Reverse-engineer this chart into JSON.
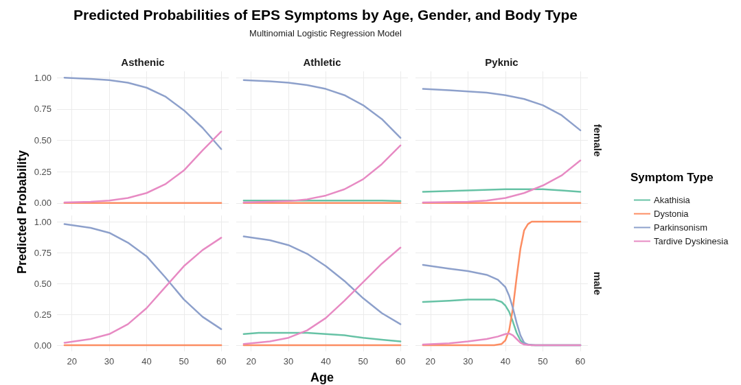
{
  "chart_data": [
    {
      "type": "line",
      "ylabel": "Predicted Probability",
      "annotations": [
        "Asthenic"
      ],
      "tick_labels": "y",
      "grid": true,
      "xlim": [
        16,
        62
      ],
      "xticks": [
        20,
        30,
        40,
        50,
        60
      ],
      "ylim": [
        -0.05,
        1.05
      ],
      "yticks": [
        {
          "value": 0,
          "label": "0.00"
        },
        {
          "value": 0.25,
          "label": "0.25"
        },
        {
          "value": 0.5,
          "label": "0.50"
        },
        {
          "value": 0.75,
          "label": "0.75"
        },
        {
          "value": 1,
          "label": "1.00"
        }
      ],
      "series": [
        {
          "color": "#fc8d62",
          "x": [
            18,
            60
          ],
          "values": [
            0,
            0
          ]
        },
        {
          "color": "#8da0cb",
          "x": [
            18,
            25,
            30,
            35,
            40,
            45,
            50,
            55,
            60
          ],
          "values": [
            1.0,
            0.99,
            0.98,
            0.96,
            0.92,
            0.85,
            0.74,
            0.6,
            0.43
          ]
        },
        {
          "color": "#e78ac3",
          "x": [
            18,
            25,
            30,
            35,
            40,
            45,
            50,
            55,
            60
          ],
          "values": [
            0.005,
            0.01,
            0.02,
            0.04,
            0.08,
            0.15,
            0.26,
            0.42,
            0.57
          ]
        }
      ]
    },
    {
      "type": "line",
      "title": "Predicted Probabilities of EPS Symptoms by Age, Gender, and Body Type",
      "subtitle": "Multinomial Logistic Regression Model",
      "annotations": [
        "Athletic"
      ],
      "tick_labels": false,
      "grid": true,
      "xlim": [
        16,
        62
      ],
      "xticks": [
        20,
        30,
        40,
        50,
        60
      ],
      "ylim": [
        -0.05,
        1.05
      ],
      "yticks": [
        0,
        0.25,
        0.5,
        0.75,
        1
      ],
      "series": [
        {
          "color": "#66c2a5",
          "x": [
            18,
            30,
            40,
            50,
            55,
            60
          ],
          "values": [
            0.02,
            0.02,
            0.02,
            0.02,
            0.02,
            0.015
          ]
        },
        {
          "color": "#fc8d62",
          "x": [
            18,
            60
          ],
          "values": [
            0,
            0
          ]
        },
        {
          "color": "#8da0cb",
          "x": [
            18,
            25,
            30,
            35,
            40,
            45,
            50,
            55,
            60
          ],
          "values": [
            0.98,
            0.97,
            0.96,
            0.94,
            0.91,
            0.86,
            0.78,
            0.67,
            0.52
          ]
        },
        {
          "color": "#e78ac3",
          "x": [
            18,
            30,
            35,
            40,
            45,
            50,
            55,
            60
          ],
          "values": [
            0.005,
            0.015,
            0.03,
            0.06,
            0.11,
            0.19,
            0.31,
            0.46
          ]
        }
      ]
    },
    {
      "type": "line",
      "annotations": [
        "Pyknic",
        "female"
      ],
      "tick_labels": false,
      "grid": true,
      "xlim": [
        16,
        62
      ],
      "xticks": [
        20,
        30,
        40,
        50,
        60
      ],
      "ylim": [
        -0.05,
        1.05
      ],
      "yticks": [
        0,
        0.25,
        0.5,
        0.75,
        1
      ],
      "series": [
        {
          "color": "#66c2a5",
          "x": [
            18,
            30,
            40,
            50,
            55,
            60
          ],
          "values": [
            0.09,
            0.1,
            0.11,
            0.11,
            0.1,
            0.09
          ]
        },
        {
          "color": "#fc8d62",
          "x": [
            18,
            60
          ],
          "values": [
            0,
            0
          ]
        },
        {
          "color": "#8da0cb",
          "x": [
            18,
            25,
            30,
            35,
            40,
            45,
            50,
            55,
            60
          ],
          "values": [
            0.91,
            0.9,
            0.89,
            0.88,
            0.86,
            0.83,
            0.78,
            0.7,
            0.58
          ]
        },
        {
          "color": "#e78ac3",
          "x": [
            18,
            30,
            35,
            40,
            45,
            50,
            55,
            60
          ],
          "values": [
            0.005,
            0.01,
            0.02,
            0.04,
            0.08,
            0.14,
            0.22,
            0.34
          ]
        }
      ]
    },
    {
      "type": "line",
      "grid": true,
      "xlim": [
        16,
        62
      ],
      "xticks": [
        20,
        30,
        40,
        50,
        60
      ],
      "ylim": [
        -0.05,
        1.05
      ],
      "yticks": [
        {
          "value": 0,
          "label": "0.00"
        },
        {
          "value": 0.25,
          "label": "0.25"
        },
        {
          "value": 0.5,
          "label": "0.50"
        },
        {
          "value": 0.75,
          "label": "0.75"
        },
        {
          "value": 1,
          "label": "1.00"
        }
      ],
      "series": [
        {
          "color": "#fc8d62",
          "x": [
            18,
            60
          ],
          "values": [
            0,
            0
          ]
        },
        {
          "color": "#8da0cb",
          "x": [
            18,
            25,
            30,
            35,
            40,
            45,
            50,
            55,
            60
          ],
          "values": [
            0.98,
            0.95,
            0.91,
            0.83,
            0.72,
            0.55,
            0.37,
            0.23,
            0.13
          ]
        },
        {
          "color": "#e78ac3",
          "x": [
            18,
            25,
            30,
            35,
            40,
            45,
            50,
            55,
            60
          ],
          "values": [
            0.02,
            0.05,
            0.09,
            0.17,
            0.3,
            0.47,
            0.64,
            0.77,
            0.87
          ]
        }
      ]
    },
    {
      "type": "line",
      "xlabel": "Age",
      "tick_labels": "x",
      "grid": true,
      "xlim": [
        16,
        62
      ],
      "xticks": [
        20,
        30,
        40,
        50,
        60
      ],
      "ylim": [
        -0.05,
        1.05
      ],
      "yticks": [
        0,
        0.25,
        0.5,
        0.75,
        1
      ],
      "series": [
        {
          "color": "#66c2a5",
          "x": [
            18,
            22,
            35,
            40,
            45,
            50,
            55,
            60
          ],
          "values": [
            0.09,
            0.1,
            0.1,
            0.09,
            0.08,
            0.06,
            0.045,
            0.03
          ]
        },
        {
          "color": "#fc8d62",
          "x": [
            18,
            60
          ],
          "values": [
            0,
            0
          ]
        },
        {
          "color": "#8da0cb",
          "x": [
            18,
            25,
            30,
            35,
            40,
            45,
            50,
            55,
            60
          ],
          "values": [
            0.88,
            0.85,
            0.81,
            0.74,
            0.64,
            0.52,
            0.38,
            0.26,
            0.17
          ]
        },
        {
          "color": "#e78ac3",
          "x": [
            18,
            25,
            30,
            35,
            40,
            45,
            50,
            55,
            60
          ],
          "values": [
            0.01,
            0.03,
            0.06,
            0.12,
            0.22,
            0.36,
            0.51,
            0.66,
            0.79
          ]
        }
      ]
    },
    {
      "type": "line",
      "annotations": [
        "male"
      ],
      "legend": "right",
      "legend_title": "Symptom Type",
      "tick_labels": "x",
      "grid": true,
      "xlim": [
        16,
        62
      ],
      "xticks": [
        20,
        30,
        40,
        50,
        60
      ],
      "ylim": [
        -0.05,
        1.05
      ],
      "yticks": [
        0,
        0.25,
        0.5,
        0.75,
        1
      ],
      "series": [
        {
          "name": "Akathisia",
          "color": "#66c2a5",
          "x": [
            18,
            25,
            30,
            37,
            39,
            40,
            41,
            42,
            43,
            44,
            45,
            47,
            60
          ],
          "values": [
            0.35,
            0.36,
            0.37,
            0.37,
            0.35,
            0.32,
            0.27,
            0.19,
            0.1,
            0.04,
            0.01,
            0,
            0
          ]
        },
        {
          "name": "Dystonia",
          "color": "#fc8d62",
          "x": [
            18,
            37,
            39,
            40,
            41,
            42,
            43,
            44,
            45,
            46,
            47,
            60
          ],
          "values": [
            0,
            0,
            0.01,
            0.04,
            0.12,
            0.3,
            0.55,
            0.78,
            0.93,
            0.98,
            1.0,
            1.0
          ]
        },
        {
          "name": "Parkinsonism",
          "color": "#8da0cb",
          "x": [
            18,
            25,
            30,
            35,
            38,
            40,
            41,
            42,
            43,
            44,
            45,
            46,
            48,
            60
          ],
          "values": [
            0.65,
            0.62,
            0.6,
            0.57,
            0.53,
            0.47,
            0.4,
            0.3,
            0.18,
            0.08,
            0.02,
            0.005,
            0,
            0
          ]
        },
        {
          "name": "Tardive Dyskinesia",
          "color": "#e78ac3",
          "x": [
            18,
            25,
            30,
            35,
            38,
            40,
            41,
            42,
            43,
            44,
            45,
            47,
            60
          ],
          "values": [
            0.005,
            0.015,
            0.03,
            0.05,
            0.07,
            0.09,
            0.095,
            0.08,
            0.05,
            0.02,
            0.005,
            0,
            0
          ]
        }
      ]
    }
  ]
}
